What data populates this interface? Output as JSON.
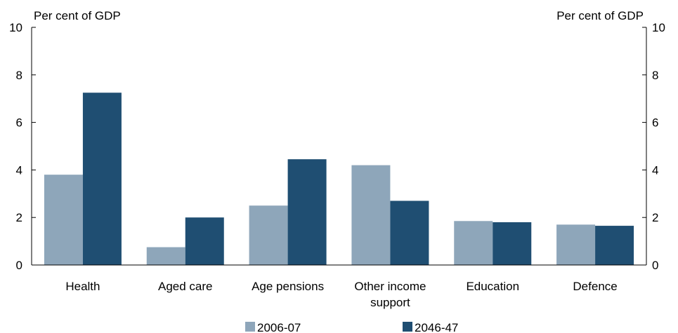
{
  "chart_data": {
    "type": "bar",
    "ylabel_left": "Per cent of GDP",
    "ylabel_right": "Per cent of GDP",
    "ylim": [
      0,
      10
    ],
    "yticks": [
      0,
      2,
      4,
      6,
      8,
      10
    ],
    "categories": [
      [
        "Health"
      ],
      [
        "Aged care"
      ],
      [
        "Age pensions"
      ],
      [
        "Other income",
        "support"
      ],
      [
        "Education"
      ],
      [
        "Defence"
      ]
    ],
    "series": [
      {
        "name": "2006-07",
        "color": "#8EA6BA",
        "values": [
          3.8,
          0.75,
          2.5,
          4.2,
          1.85,
          1.7
        ]
      },
      {
        "name": "2046-47",
        "color": "#1F4E72",
        "values": [
          7.25,
          2.0,
          4.45,
          2.7,
          1.8,
          1.65
        ]
      }
    ],
    "legend_position": "bottom-center",
    "grid": false
  }
}
